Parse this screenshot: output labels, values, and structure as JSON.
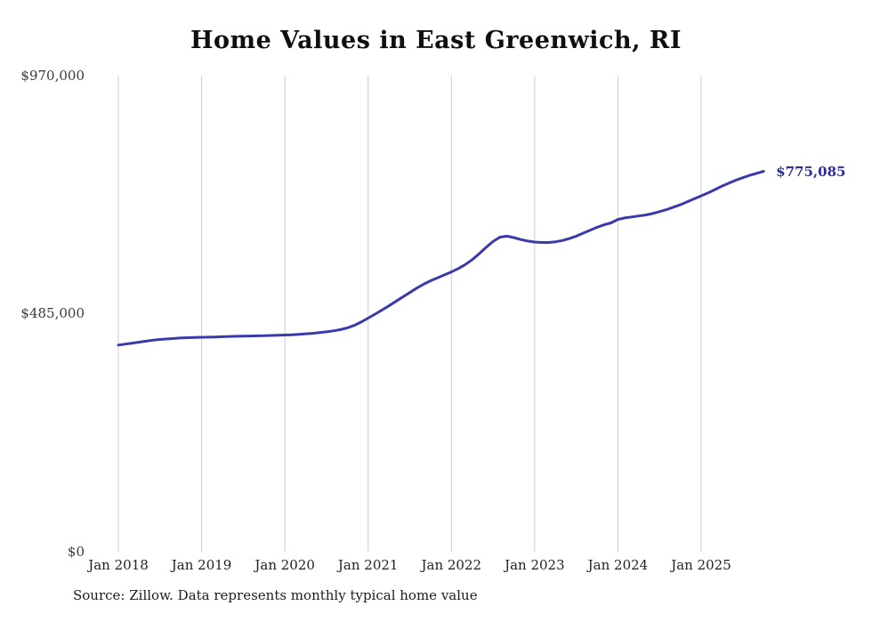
{
  "title": "Home Values in East Greenwich, RI",
  "end_label": "$775,085",
  "source_note": "Source: Zillow. Data represents monthly typical home value",
  "colors": {
    "line": "#3a3aad",
    "end_label": "#2b2ba3",
    "gridline": "#cccccc"
  },
  "chart_data": {
    "type": "line",
    "title": "Home Values in East Greenwich, RI",
    "series_name": "Monthly typical home value",
    "x_start": "Jan 2018",
    "x_end": "Oct 2025",
    "x_tick_labels": [
      "Jan 2018",
      "Jan 2019",
      "Jan 2020",
      "Jan 2021",
      "Jan 2022",
      "Jan 2023",
      "Jan 2024",
      "Jan 2025"
    ],
    "y_tick_labels": [
      "$0",
      "$485,000",
      "$970,000"
    ],
    "ylim": [
      0,
      970000
    ],
    "grid": "vertical-only",
    "legend": "none",
    "latest_value": 775085,
    "values": [
      421000,
      423000,
      425000,
      427000,
      429000,
      431000,
      432500,
      433500,
      434500,
      435500,
      436000,
      436500,
      437000,
      437200,
      437500,
      438000,
      438500,
      439000,
      439300,
      439500,
      439800,
      440000,
      440500,
      441000,
      441500,
      442000,
      443000,
      444000,
      445000,
      446500,
      448000,
      450000,
      452500,
      456000,
      461000,
      468000,
      476000,
      484000,
      492500,
      501000,
      510000,
      519000,
      528000,
      537000,
      545000,
      552000,
      558000,
      564000,
      570000,
      577000,
      585000,
      595000,
      607000,
      620000,
      632000,
      641000,
      643000,
      640000,
      636000,
      633000,
      631000,
      630000,
      630000,
      631500,
      634000,
      638000,
      643000,
      649000,
      655000,
      661000,
      666000,
      670000,
      677000,
      680000,
      682000,
      684000,
      686000,
      689000,
      693000,
      697000,
      702000,
      707000,
      713000,
      719000,
      725000,
      731000,
      738000,
      745000,
      751000,
      757000,
      762000,
      767000,
      771000,
      775085
    ]
  }
}
